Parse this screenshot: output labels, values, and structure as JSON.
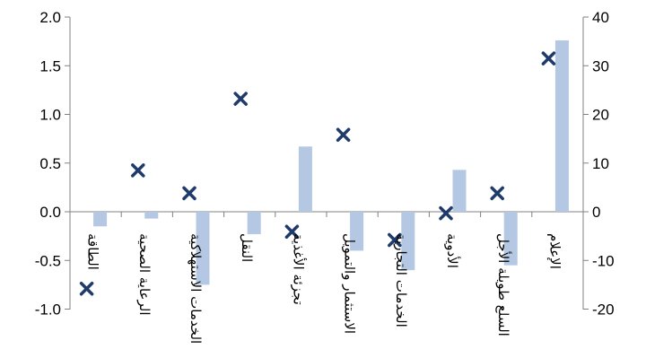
{
  "chart_data": {
    "type": "bar",
    "title": "",
    "xlabel": "",
    "ylabel": "",
    "categories": [
      "الطاقة",
      "الرعاية الصحية",
      "الخدمات الاستهلاكية",
      "النقل",
      "تجزئة الأغذية",
      "الاستثمار والتمويل",
      "الخدمات التجارية",
      "الأدوية",
      "السلع طويلة الأجل",
      "الإعلام"
    ],
    "series": [
      {
        "axis": "left",
        "type": "bar",
        "color": "#b4c8e4",
        "values": [
          -0.15,
          -0.07,
          -0.75,
          -0.23,
          0.67,
          -0.4,
          -0.6,
          0.43,
          -0.55,
          1.76
        ]
      },
      {
        "axis": "right",
        "type": "scatter",
        "marker": "x",
        "color": "#1f3b6b",
        "values": [
          -15.8,
          8.5,
          3.8,
          23.2,
          -4.1,
          15.8,
          -5.8,
          -0.3,
          3.8,
          31.5
        ]
      }
    ],
    "ylim_left": [
      -1.0,
      2.0
    ],
    "yticks_left": [
      "2.0",
      "1.5",
      "1.0",
      "0.5",
      "0.0",
      "-0.5",
      "-1.0"
    ],
    "ylim_right": [
      -20,
      40
    ],
    "yticks_right": [
      "40",
      "30",
      "20",
      "10",
      "0",
      "-10",
      "-20"
    ],
    "grid": false,
    "tiny_labels": [
      "",
      "",
      "",
      ""
    ]
  }
}
